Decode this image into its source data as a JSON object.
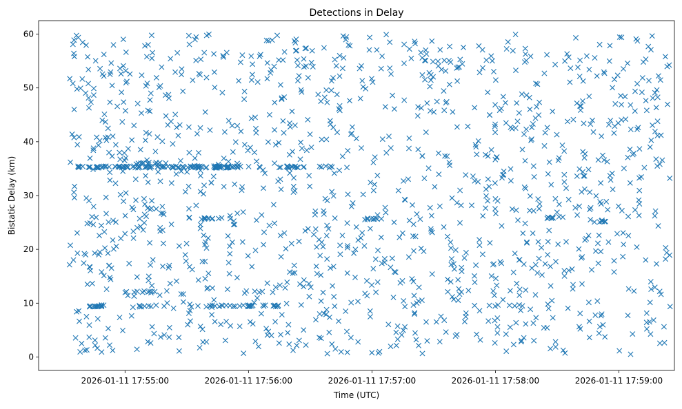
{
  "chart_data": {
    "type": "scatter",
    "title": "Detections in Delay",
    "xlabel": "Time (UTC)",
    "ylabel": "Bistatic Delay (km)",
    "marker": "x",
    "color": "#1f77b4",
    "grid": false,
    "x_ticks": [
      "2026-01-11 17:55:00",
      "2026-01-11 17:56:00",
      "2026-01-11 17:57:00",
      "2026-01-11 17:58:00",
      "2026-01-11 17:59:00"
    ],
    "y_ticks": [
      0,
      10,
      20,
      30,
      40,
      50,
      60
    ],
    "xlim": [
      "2026-01-11 17:54:18",
      "2026-01-11 17:59:27"
    ],
    "ylim": [
      -2.5,
      62.5
    ],
    "x_range": [
      "2026-01-11 17:54:33",
      "2026-01-11 17:59:25"
    ],
    "y_range": [
      0.5,
      60
    ],
    "tracks": [
      {
        "y": 35.3,
        "x": [
          "17:54:33",
          "17:56:07"
        ],
        "density": 0.9
      },
      {
        "y": 35.3,
        "x": [
          "17:56:12",
          "17:56:27"
        ],
        "density": 0.8
      },
      {
        "y": 35.3,
        "x": [
          "17:56:34",
          "17:56:42"
        ],
        "density": 0.6
      },
      {
        "y": 36.0,
        "x": [
          "17:55:04",
          "17:55:17"
        ],
        "density": 0.7
      },
      {
        "y": 9.5,
        "x": [
          "17:54:38",
          "17:54:52"
        ],
        "density": 0.8
      },
      {
        "y": 9.5,
        "x": [
          "17:55:06",
          "17:55:20"
        ],
        "density": 0.6
      },
      {
        "y": 9.5,
        "x": [
          "17:55:36",
          "17:56:15"
        ],
        "density": 0.7
      },
      {
        "y": 9.5,
        "x": [
          "17:56:16",
          "17:56:34"
        ],
        "density": 0.3
      },
      {
        "y": 9.5,
        "x": [
          "17:57:15",
          "17:57:21"
        ],
        "density": 0.4
      },
      {
        "y": 9.5,
        "x": [
          "17:57:43",
          "17:58:16"
        ],
        "density": 0.4
      },
      {
        "y": 12.1,
        "x": [
          "17:55:00",
          "17:55:16"
        ],
        "density": 0.6
      },
      {
        "y": 12.1,
        "x": [
          "17:55:51",
          "17:56:07"
        ],
        "density": 0.4
      },
      {
        "y": 25.7,
        "x": [
          "17:55:37",
          "17:55:48"
        ],
        "density": 0.8
      },
      {
        "y": 25.7,
        "x": [
          "17:56:56",
          "17:57:05"
        ],
        "density": 0.8
      },
      {
        "y": 25.9,
        "x": [
          "17:58:25",
          "17:58:33"
        ],
        "density": 0.8
      },
      {
        "y": 25.2,
        "x": [
          "17:58:48",
          "17:58:54"
        ],
        "density": 0.7
      },
      {
        "y": 27.5,
        "x": [
          "17:54:58",
          "17:55:20"
        ],
        "density": 0.4
      },
      {
        "y": 26.6,
        "x": [
          "17:55:17",
          "17:55:21"
        ],
        "density": 0.6
      }
    ],
    "scattered_points": 1300
  }
}
